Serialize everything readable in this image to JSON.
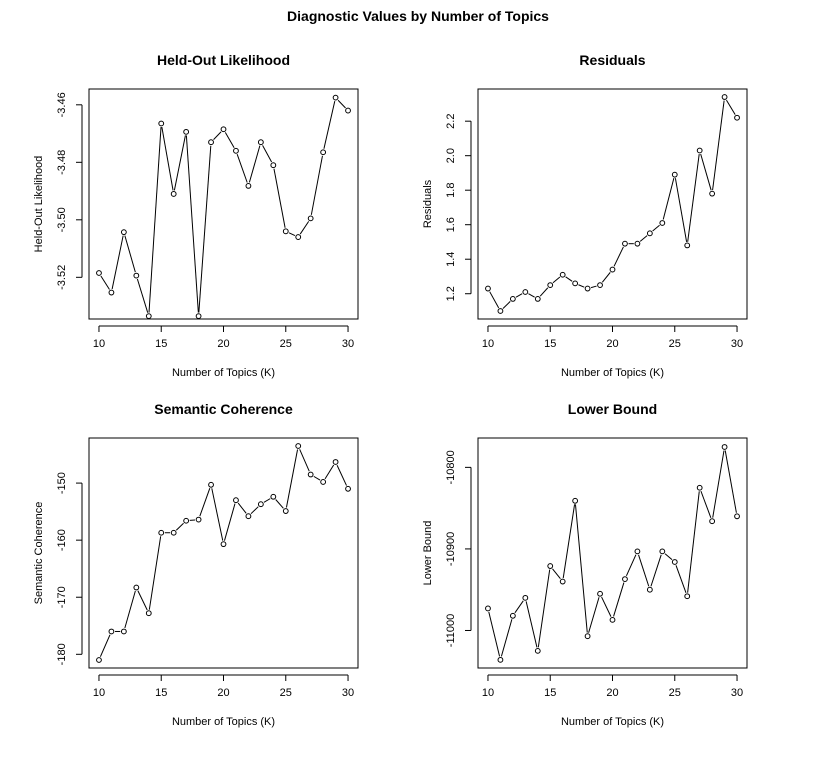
{
  "figure": {
    "title": "Diagnostic Values by Number of Topics"
  },
  "chart_data": [
    {
      "type": "line",
      "title": "Held-Out Likelihood",
      "xlabel": "Number of Topics (K)",
      "ylabel": "Held-Out Likelihood",
      "x": [
        10,
        11,
        12,
        13,
        14,
        15,
        16,
        17,
        18,
        19,
        20,
        21,
        22,
        23,
        24,
        25,
        26,
        27,
        28,
        29,
        30
      ],
      "y": [
        -3.5185,
        -3.5253,
        -3.5043,
        -3.5194,
        -3.5335,
        -3.4665,
        -3.491,
        -3.4694,
        -3.5335,
        -3.473,
        -3.4685,
        -3.476,
        -3.4882,
        -3.473,
        -3.481,
        -3.504,
        -3.506,
        -3.4995,
        -3.4765,
        -3.4575,
        -3.462
      ],
      "xticks": [
        "10",
        "15",
        "20",
        "25",
        "30"
      ],
      "yticks": [
        "-3.52",
        "-3.50",
        "-3.48",
        "-3.46"
      ],
      "yticks_values": [
        -3.52,
        -3.5,
        -3.48,
        -3.46
      ]
    },
    {
      "type": "line",
      "title": "Residuals",
      "xlabel": "Number of Topics (K)",
      "ylabel": "Residuals",
      "x": [
        10,
        11,
        12,
        13,
        14,
        15,
        16,
        17,
        18,
        19,
        20,
        21,
        22,
        23,
        24,
        25,
        26,
        27,
        28,
        29,
        30
      ],
      "y": [
        1.23,
        1.1,
        1.17,
        1.21,
        1.17,
        1.25,
        1.31,
        1.26,
        1.23,
        1.25,
        1.34,
        1.49,
        1.49,
        1.55,
        1.61,
        1.89,
        1.48,
        2.03,
        1.78,
        2.34,
        2.22
      ],
      "xticks": [
        "10",
        "15",
        "20",
        "25",
        "30"
      ],
      "yticks": [
        "1.2",
        "1.4",
        "1.6",
        "1.8",
        "2.0",
        "2.2"
      ],
      "yticks_values": [
        1.2,
        1.4,
        1.6,
        1.8,
        2.0,
        2.2
      ]
    },
    {
      "type": "line",
      "title": "Semantic Coherence",
      "xlabel": "Number of Topics (K)",
      "ylabel": "Semantic Coherence",
      "x": [
        10,
        11,
        12,
        13,
        14,
        15,
        16,
        17,
        18,
        19,
        20,
        21,
        22,
        23,
        24,
        25,
        26,
        27,
        28,
        29,
        30
      ],
      "y": [
        -181.0,
        -176.0,
        -176.0,
        -168.3,
        -172.8,
        -158.7,
        -158.7,
        -156.6,
        -156.4,
        -150.3,
        -160.7,
        -153.0,
        -155.8,
        -153.7,
        -152.4,
        -154.9,
        -143.5,
        -148.5,
        -149.8,
        -146.3,
        -151.0
      ],
      "xticks": [
        "10",
        "15",
        "20",
        "25",
        "30"
      ],
      "yticks": [
        "-180",
        "-170",
        "-160",
        "-150"
      ],
      "yticks_values": [
        -180,
        -170,
        -160,
        -150
      ]
    },
    {
      "type": "line",
      "title": "Lower Bound",
      "xlabel": "Number of Topics (K)",
      "ylabel": "Lower Bound",
      "x": [
        10,
        11,
        12,
        13,
        14,
        15,
        16,
        17,
        18,
        19,
        20,
        21,
        22,
        23,
        24,
        25,
        26,
        27,
        28,
        29,
        30
      ],
      "y": [
        -10973,
        -11036,
        -10982,
        -10960,
        -11025,
        -10921,
        -10940,
        -10841,
        -11007,
        -10955,
        -10987,
        -10937,
        -10903,
        -10950,
        -10903,
        -10916,
        -10958,
        -10825,
        -10866,
        -10775,
        -10860
      ],
      "xticks": [
        "10",
        "15",
        "20",
        "25",
        "30"
      ],
      "yticks": [
        "-11000",
        "-10900",
        "-10800"
      ],
      "yticks_values": [
        -11000,
        -10900,
        -10800
      ]
    }
  ]
}
